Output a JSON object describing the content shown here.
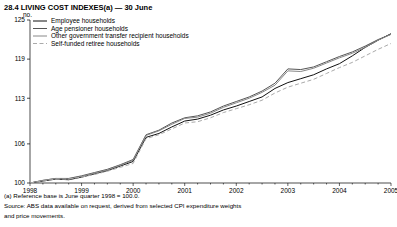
{
  "chart_data": {
    "type": "line",
    "title": "28.4 LIVING COST INDEXES(a) — 30 June",
    "y_label": "no.",
    "footnotes": [
      "(a) Reference base is June quarter 1998 = 100.0.",
      "Source: ABS data available on request, derived from selected CPI expenditure weights",
      "and price movements."
    ],
    "categories": [
      "1998",
      null,
      null,
      null,
      "1999",
      null,
      null,
      null,
      "2000",
      null,
      null,
      null,
      "2001",
      null,
      null,
      null,
      "2002",
      null,
      null,
      null,
      "2003",
      null,
      null,
      null,
      "2004",
      null,
      null,
      null,
      "2005"
    ],
    "ylim": [
      100,
      125
    ],
    "yticks": [
      100,
      106,
      113,
      119,
      125
    ],
    "grid": false,
    "legend": "top-left",
    "series": [
      {
        "name": "Employee households",
        "color": "#111111",
        "line_style": "solid",
        "values": [
          100,
          100.3,
          100.6,
          100.5,
          100.9,
          101.4,
          101.9,
          102.6,
          103.3,
          107.0,
          107.6,
          108.6,
          109.5,
          109.8,
          110.4,
          111.2,
          111.8,
          112.5,
          113.2,
          114.5,
          115.4,
          116.0,
          116.6,
          117.5,
          118.3,
          119.5,
          120.8,
          121.9,
          122.9
        ]
      },
      {
        "name": "Age pensioner households",
        "color": "#555555",
        "line_style": "solid",
        "values": [
          100,
          100.4,
          100.7,
          100.7,
          101.1,
          101.6,
          102.1,
          102.8,
          103.6,
          107.4,
          108.1,
          109.2,
          110.0,
          110.3,
          110.9,
          111.8,
          112.5,
          113.2,
          114.1,
          115.3,
          117.5,
          117.4,
          117.8,
          118.6,
          119.4,
          120.1,
          121.0,
          122.0,
          122.8
        ]
      },
      {
        "name": "Other government transfer recipient households",
        "color": "#888888",
        "line_style": "solid",
        "values": [
          100,
          100.4,
          100.7,
          100.6,
          101.0,
          101.5,
          102.0,
          102.7,
          103.5,
          107.3,
          108.0,
          109.0,
          109.9,
          110.1,
          110.7,
          111.6,
          112.3,
          113.0,
          113.9,
          115.0,
          117.2,
          117.1,
          117.6,
          118.4,
          119.2,
          119.9,
          120.8,
          121.9,
          122.8
        ]
      },
      {
        "name": "Self-funded retiree households",
        "color": "#aaaaaa",
        "line_style": "dashed",
        "values": [
          100,
          100.3,
          100.6,
          100.6,
          100.9,
          101.3,
          101.8,
          102.4,
          103.0,
          106.8,
          107.4,
          108.3,
          109.2,
          109.4,
          110.0,
          110.8,
          111.4,
          112.0,
          112.7,
          113.8,
          114.7,
          115.3,
          115.9,
          116.8,
          117.7,
          118.5,
          119.5,
          120.5,
          121.4
        ]
      }
    ]
  }
}
